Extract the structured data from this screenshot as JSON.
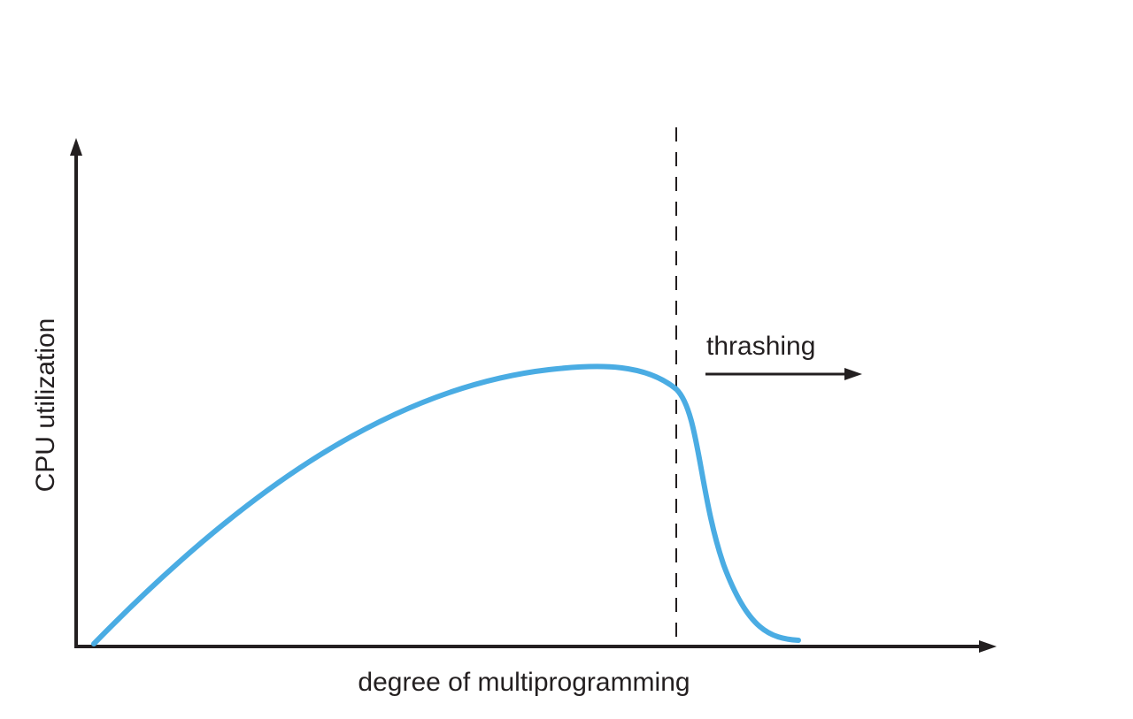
{
  "diagram": {
    "y_axis_label": "CPU utilization",
    "x_axis_label": "degree of multiprogramming",
    "annotation": "thrashing",
    "colors": {
      "curve": "#4aace3",
      "ink": "#231f20",
      "background": "#ffffff"
    }
  }
}
